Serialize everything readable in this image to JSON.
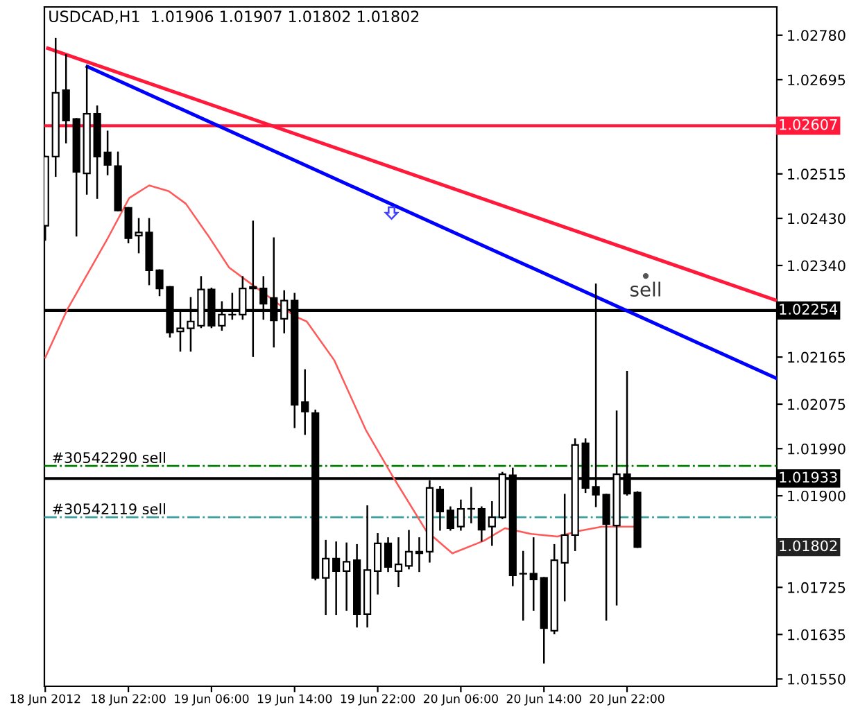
{
  "chart_data": {
    "type": "candlestick",
    "title": "USDCAD,H1  1.01906 1.01907 1.01802 1.01802",
    "x": [
      "2012-06-18T14:00",
      "2012-06-18T15:00",
      "2012-06-18T16:00",
      "2012-06-18T17:00",
      "2012-06-18T18:00",
      "2012-06-18T19:00",
      "2012-06-18T20:00",
      "2012-06-18T21:00",
      "2012-06-18T22:00",
      "2012-06-18T23:00",
      "2012-06-19T00:00",
      "2012-06-19T01:00",
      "2012-06-19T02:00",
      "2012-06-19T03:00",
      "2012-06-19T04:00",
      "2012-06-19T05:00",
      "2012-06-19T06:00",
      "2012-06-19T07:00",
      "2012-06-19T08:00",
      "2012-06-19T09:00",
      "2012-06-19T10:00",
      "2012-06-19T11:00",
      "2012-06-19T12:00",
      "2012-06-19T13:00",
      "2012-06-19T14:00",
      "2012-06-19T15:00",
      "2012-06-19T16:00",
      "2012-06-19T17:00",
      "2012-06-19T18:00",
      "2012-06-19T19:00",
      "2012-06-19T20:00",
      "2012-06-19T21:00",
      "2012-06-19T22:00",
      "2012-06-19T23:00",
      "2012-06-20T00:00",
      "2012-06-20T01:00",
      "2012-06-20T02:00",
      "2012-06-20T03:00",
      "2012-06-20T04:00",
      "2012-06-20T05:00",
      "2012-06-20T06:00",
      "2012-06-20T07:00",
      "2012-06-20T08:00",
      "2012-06-20T09:00",
      "2012-06-20T10:00",
      "2012-06-20T11:00",
      "2012-06-20T12:00",
      "2012-06-20T13:00",
      "2012-06-20T14:00",
      "2012-06-20T15:00",
      "2012-06-20T16:00",
      "2012-06-20T17:00",
      "2012-06-20T18:00",
      "2012-06-20T19:00",
      "2012-06-20T20:00",
      "2012-06-20T21:00",
      "2012-06-20T22:00",
      "2012-06-20T23:00"
    ],
    "ohlc": [
      [
        1.02416,
        1.02548,
        1.02389,
        1.02548
      ],
      [
        1.02548,
        1.02773,
        1.02511,
        1.0267
      ],
      [
        1.02675,
        1.02742,
        1.02575,
        1.02617
      ],
      [
        1.0262,
        1.0262,
        1.02397,
        1.02519
      ],
      [
        1.02516,
        1.0272,
        1.02477,
        1.0263
      ],
      [
        1.0263,
        1.02644,
        1.02469,
        1.02548
      ],
      [
        1.02556,
        1.02596,
        1.02514,
        1.02532
      ],
      [
        1.0253,
        1.02556,
        1.02445,
        1.02445
      ],
      [
        1.0245,
        1.0245,
        1.02384,
        1.02392
      ],
      [
        1.02397,
        1.02429,
        1.02365,
        1.02403
      ],
      [
        1.02403,
        1.02429,
        1.02304,
        1.02331
      ],
      [
        1.02331,
        1.02331,
        1.02283,
        1.02296
      ],
      [
        1.02299,
        1.02299,
        1.02204,
        1.02212
      ],
      [
        1.02214,
        1.02251,
        1.02177,
        1.0222
      ],
      [
        1.0222,
        1.02278,
        1.02177,
        1.02233
      ],
      [
        1.02225,
        1.02318,
        1.02222,
        1.02294
      ],
      [
        1.02294,
        1.02296,
        1.02222,
        1.02225
      ],
      [
        1.02225,
        1.0227,
        1.02217,
        1.02246
      ],
      [
        1.02246,
        1.02286,
        1.02238,
        1.02246
      ],
      [
        1.02246,
        1.02318,
        1.02238,
        1.02296
      ],
      [
        1.02296,
        1.02424,
        1.02167,
        1.02299
      ],
      [
        1.02296,
        1.02318,
        1.02238,
        1.02267
      ],
      [
        1.02278,
        1.02392,
        1.02185,
        1.02235
      ],
      [
        1.02238,
        1.02291,
        1.02212,
        1.02273
      ],
      [
        1.02273,
        1.02286,
        1.02031,
        1.02074
      ],
      [
        1.02079,
        1.0214,
        1.02018,
        1.02061
      ],
      [
        1.02058,
        1.02063,
        1.0174,
        1.01743
      ],
      [
        1.01743,
        1.01814,
        1.01674,
        1.0178
      ],
      [
        1.0178,
        1.01811,
        1.01674,
        1.01756
      ],
      [
        1.01756,
        1.01809,
        1.01682,
        1.01774
      ],
      [
        1.01777,
        1.01806,
        1.0165,
        1.01674
      ],
      [
        1.01674,
        1.0188,
        1.0165,
        1.01758
      ],
      [
        1.01756,
        1.01827,
        1.01713,
        1.01809
      ],
      [
        1.01809,
        1.01819,
        1.01756,
        1.01764
      ],
      [
        1.01756,
        1.01819,
        1.01727,
        1.01769
      ],
      [
        1.01766,
        1.01833,
        1.01761,
        1.01793
      ],
      [
        1.0179,
        1.01819,
        1.01756,
        1.01793
      ],
      [
        1.01793,
        1.01928,
        1.01774,
        1.01915
      ],
      [
        1.01912,
        1.01917,
        1.01835,
        1.0187
      ],
      [
        1.01872,
        1.01878,
        1.01835,
        1.01838
      ],
      [
        1.01841,
        1.01891,
        1.01835,
        1.01875
      ],
      [
        1.01875,
        1.01915,
        1.01849,
        1.01875
      ],
      [
        1.01875,
        1.01878,
        1.01814,
        1.01835
      ],
      [
        1.01841,
        1.01888,
        1.01806,
        1.01859
      ],
      [
        1.01859,
        1.01944,
        1.01857,
        1.01941
      ],
      [
        1.01939,
        1.01952,
        1.01729,
        1.01748
      ],
      [
        1.01751,
        1.01793,
        1.01663,
        1.01751
      ],
      [
        1.01751,
        1.01819,
        1.01682,
        1.0174
      ],
      [
        1.01743,
        1.01743,
        1.01581,
        1.01647
      ],
      [
        1.01642,
        1.01806,
        1.01637,
        1.01777
      ],
      [
        1.01772,
        1.01902,
        1.017,
        1.01825
      ],
      [
        1.01825,
        1.02008,
        1.01796,
        1.01997
      ],
      [
        1.02,
        1.02008,
        1.01907,
        1.01915
      ],
      [
        1.01917,
        1.02304,
        1.0188,
        1.01902
      ],
      [
        1.01902,
        1.01902,
        1.01663,
        1.01846
      ],
      [
        1.01843,
        1.02061,
        1.01692,
        1.01941
      ],
      [
        1.01941,
        1.02137,
        1.01902,
        1.01904
      ],
      [
        1.01906,
        1.01907,
        1.01802,
        1.01802
      ]
    ],
    "series": [
      {
        "type": "line",
        "color": "#ff1a3c",
        "x": [
          "2012-06-18T14:15",
          "2012-06-21T12:25"
        ],
        "values": [
          1.02755,
          1.02273
        ]
      },
      {
        "type": "line",
        "color": "#0000ff",
        "x": [
          "2012-06-18T18:03",
          "2012-06-21T12:25"
        ],
        "values": [
          1.0272,
          1.02124
        ]
      },
      {
        "type": "line",
        "color": "#ff5a5a",
        "x": [
          "2012-06-18T14:00",
          "2012-06-18T16:09",
          "2012-06-18T19:56",
          "2012-06-18T22:05",
          "2012-06-19T00:00",
          "2012-06-19T01:53",
          "2012-06-19T03:32",
          "2012-06-19T05:41",
          "2012-06-19T07:42",
          "2012-06-19T09:28",
          "2012-06-19T12:00",
          "2012-06-19T14:01",
          "2012-06-19T15:10",
          "2012-06-19T17:49",
          "2012-06-19T20:51",
          "2012-06-19T23:23",
          "2012-06-20T02:40",
          "2012-06-20T05:11",
          "2012-06-20T08:13",
          "2012-06-20T10:15",
          "2012-06-20T12:47",
          "2012-06-20T15:18",
          "2012-06-20T17:27",
          "2012-06-20T19:36",
          "2012-06-20T21:15",
          "2012-06-20T22:53"
        ],
        "values": [
          1.02164,
          1.02257,
          1.02389,
          1.02469,
          1.02493,
          1.02482,
          1.02458,
          1.02397,
          1.02336,
          1.0231,
          1.02273,
          1.02243,
          1.02233,
          1.02159,
          1.02026,
          1.01939,
          1.01833,
          1.0179,
          1.01814,
          1.01838,
          1.01827,
          1.01822,
          1.01833,
          1.01841,
          1.01841,
          1.01841
        ]
      }
    ],
    "xlim": [
      "2012-06-18T13:55",
      "2012-06-21T12:25"
    ],
    "xticks": [
      {
        "value": "2012-06-18T14:00",
        "label": "18 Jun 2012"
      },
      {
        "value": "2012-06-18T22:00",
        "label": "18 Jun 22:00"
      },
      {
        "value": "2012-06-19T06:00",
        "label": "19 Jun 06:00"
      },
      {
        "value": "2012-06-19T14:00",
        "label": "19 Jun 14:00"
      },
      {
        "value": "2012-06-19T22:00",
        "label": "19 Jun 22:00"
      },
      {
        "value": "2012-06-20T06:00",
        "label": "20 Jun 06:00"
      },
      {
        "value": "2012-06-20T14:00",
        "label": "20 Jun 14:00"
      },
      {
        "value": "2012-06-20T22:00",
        "label": "20 Jun 22:00"
      }
    ],
    "ylim": [
      1.01536,
      1.02834
    ],
    "yticks": [
      {
        "value": 1.0278,
        "label": "1.02780"
      },
      {
        "value": 1.02695,
        "label": "1.02695"
      },
      {
        "value": 1.02515,
        "label": "1.02515"
      },
      {
        "value": 1.0243,
        "label": "1.02430"
      },
      {
        "value": 1.0234,
        "label": "1.02340"
      },
      {
        "value": 1.02165,
        "label": "1.02165"
      },
      {
        "value": 1.02075,
        "label": "1.02075"
      },
      {
        "value": 1.0199,
        "label": "1.01990"
      },
      {
        "value": 1.019,
        "label": "1.01900"
      },
      {
        "value": 1.01725,
        "label": "1.01725"
      },
      {
        "value": 1.01635,
        "label": "1.01635"
      },
      {
        "value": 1.0155,
        "label": "1.01550"
      }
    ],
    "ref_lines": [
      {
        "axis": "y",
        "value": 1.02607,
        "label": "1.02607",
        "color": "#ff1a3c",
        "line_style": "solid"
      },
      {
        "axis": "y",
        "value": 1.02254,
        "label": "1.02254",
        "color": "#000000",
        "line_style": "solid"
      },
      {
        "axis": "y",
        "value": 1.01933,
        "label": "1.01933",
        "color": "#000000",
        "line_style": "solid"
      },
      {
        "axis": "y",
        "value": 1.01957,
        "label": "#30542290 sell",
        "color": "#008000",
        "line_style": "dashdot"
      },
      {
        "axis": "y",
        "value": 1.01859,
        "label": "#30542119 sell",
        "color": "#3aa0a0",
        "line_style": "dashdot"
      }
    ],
    "annotations": [
      {
        "text": "sell",
        "x": "2012-06-20T23:48",
        "y": 1.0232
      },
      "1.01802"
    ],
    "grid": false,
    "legend": false
  }
}
